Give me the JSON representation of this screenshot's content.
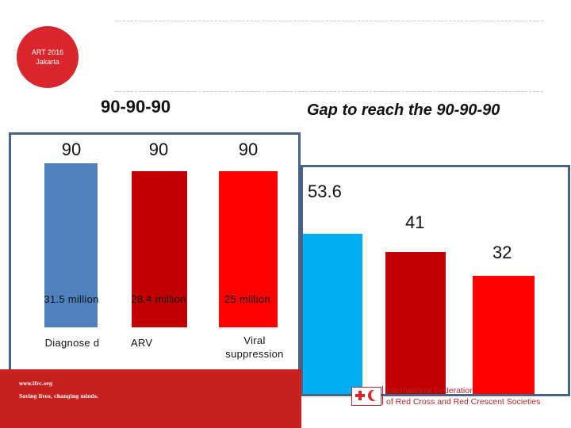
{
  "badge": {
    "line1": "ART 2016",
    "line2": "Jakarta"
  },
  "titles": {
    "left": "90-90-90",
    "right": "Gap to reach the 90-90-90"
  },
  "targets": {
    "bars": [
      {
        "target": "90",
        "value_label": "31.5 million",
        "category": "Diagnose d",
        "color": "#4f81bd"
      },
      {
        "target": "90",
        "value_label": "28.4 million",
        "category": "ARV",
        "color": "#c00000"
      },
      {
        "target": "90",
        "value_label": "25 million",
        "category": "Viral suppression",
        "color": "#ff0000"
      }
    ]
  },
  "gap": {
    "bars": [
      {
        "value": "53.6",
        "color": "#00b0f0"
      },
      {
        "value": "41",
        "color": "#c00000"
      },
      {
        "value": "32",
        "color": "#ff0000"
      }
    ]
  },
  "footer": {
    "url": "www.ifrc.org",
    "tagline": "Saving lives, changing minds.",
    "org_line1": "International Federation",
    "org_line2": "of Red Cross and Red Crescent Societies"
  }
}
